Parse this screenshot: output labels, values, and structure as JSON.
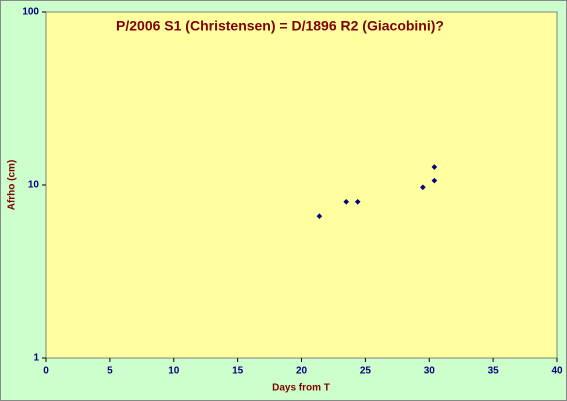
{
  "chart_data": {
    "type": "scatter",
    "title": "P/2006 S1 (Christensen) = D/1896 R2 (Giacobini)?",
    "x_label": "Days from T",
    "y_label": "Afrho (cm)",
    "x": [
      21.4,
      23.5,
      24.4,
      29.5,
      30.4,
      30.4
    ],
    "series": [
      {
        "color": "#000080",
        "values": [
          6.6,
          8.0,
          8.0,
          9.7,
          10.6,
          12.7
        ]
      }
    ],
    "xlim": [
      0,
      40
    ],
    "xticks": [
      0,
      5,
      10,
      15,
      20,
      25,
      30,
      35,
      40
    ],
    "ylim": [
      1,
      100
    ],
    "yticks": [
      1,
      10,
      100
    ],
    "y_log": true,
    "grid": false,
    "plot_color": "#ffffa0",
    "background": "#ccffcc"
  }
}
